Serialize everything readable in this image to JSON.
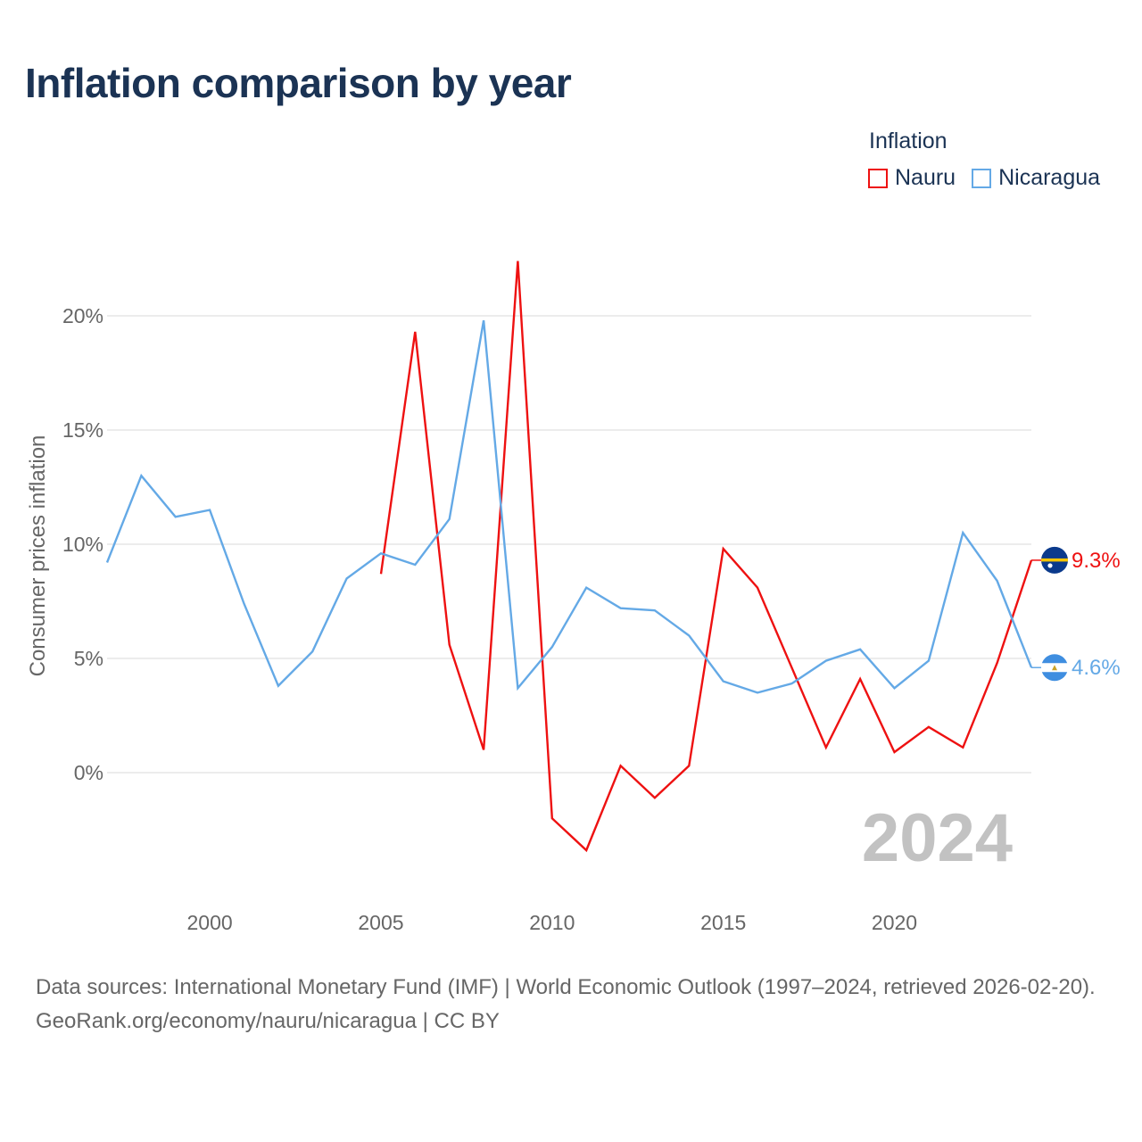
{
  "title": "Inflation comparison by year",
  "legend": {
    "title": "Inflation",
    "items": [
      {
        "label": "Nauru",
        "color": "#ee1111"
      },
      {
        "label": "Nicaragua",
        "color": "#64a9e6"
      }
    ]
  },
  "source": {
    "line1": "Data sources: International Monetary Fund (IMF) | World Economic Outlook (1997–2024, retrieved 2026-02-20).",
    "line2": "GeoRank.org/economy/nauru/nicaragua | CC BY"
  },
  "chart_data": {
    "type": "line",
    "title": "Inflation comparison by year",
    "xlabel": "",
    "ylabel": "Consumer prices inflation",
    "xlim": [
      1997,
      2024
    ],
    "ylim": [
      -5.5,
      24
    ],
    "x_ticks": [
      2000,
      2005,
      2010,
      2015,
      2020
    ],
    "y_ticks": [
      0,
      5,
      10,
      15,
      20
    ],
    "y_tick_labels": [
      "0%",
      "5%",
      "10%",
      "15%",
      "20%"
    ],
    "grid": true,
    "legend_position": "top-right",
    "year_label": "2024",
    "series": [
      {
        "name": "Nauru",
        "color": "#ee1111",
        "end_label": "9.3%",
        "x": [
          2005,
          2006,
          2007,
          2008,
          2009,
          2010,
          2011,
          2012,
          2013,
          2014,
          2015,
          2016,
          2017,
          2018,
          2019,
          2020,
          2021,
          2022,
          2023,
          2024
        ],
        "values": [
          8.7,
          19.3,
          5.6,
          1.0,
          22.4,
          -2.0,
          -3.4,
          0.3,
          -1.1,
          0.3,
          9.8,
          8.1,
          4.6,
          1.1,
          4.1,
          0.9,
          2.0,
          1.1,
          4.8,
          9.3
        ]
      },
      {
        "name": "Nicaragua",
        "color": "#64a9e6",
        "end_label": "4.6%",
        "x": [
          1997,
          1998,
          1999,
          2000,
          2001,
          2002,
          2003,
          2004,
          2005,
          2006,
          2007,
          2008,
          2009,
          2010,
          2011,
          2012,
          2013,
          2014,
          2015,
          2016,
          2017,
          2018,
          2019,
          2020,
          2021,
          2022,
          2023,
          2024
        ],
        "values": [
          9.2,
          13.0,
          11.2,
          11.5,
          7.4,
          3.8,
          5.3,
          8.5,
          9.6,
          9.1,
          11.1,
          19.8,
          3.7,
          5.5,
          8.1,
          7.2,
          7.1,
          6.0,
          4.0,
          3.5,
          3.9,
          4.9,
          5.4,
          3.7,
          4.9,
          10.5,
          8.4,
          4.6
        ]
      }
    ]
  }
}
